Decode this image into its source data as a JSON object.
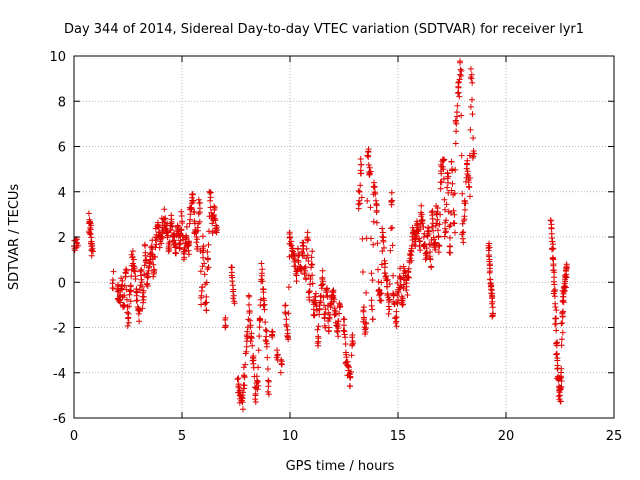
{
  "chart_data": {
    "type": "scatter",
    "title": "Day 344 of 2014, Sidereal Day-to-day VTEC variation (SDTVAR) for receiver lyr1",
    "xlabel": "GPS time / hours",
    "ylabel": "SDTVAR / TECUs",
    "xlim": [
      0,
      25
    ],
    "ylim": [
      -6,
      10
    ],
    "xticks": [
      0,
      5,
      10,
      15,
      20,
      25
    ],
    "yticks": [
      -6,
      -4,
      -2,
      0,
      2,
      4,
      6,
      8,
      10
    ],
    "grid": true,
    "marker": "+",
    "color": "#e00000",
    "series": [
      {
        "name": "SDTVAR",
        "segments": [
          {
            "t": 0.0,
            "v": 1.6
          },
          {
            "t": 0.15,
            "v": 1.7
          },
          {
            "t": 0.7,
            "v": 2.6
          },
          {
            "t": 0.75,
            "v": 2.4
          },
          {
            "t": 0.8,
            "v": 1.8
          },
          {
            "t": 0.85,
            "v": 1.5
          },
          {
            "t": 1.8,
            "v": 0.1
          },
          {
            "t": 2.0,
            "v": -0.3
          },
          {
            "t": 2.1,
            "v": -0.8
          },
          {
            "t": 2.2,
            "v": -0.2
          },
          {
            "t": 2.3,
            "v": -1.0
          },
          {
            "t": 2.4,
            "v": 0.4
          },
          {
            "t": 2.5,
            "v": -1.6
          },
          {
            "t": 2.6,
            "v": -0.4
          },
          {
            "t": 2.7,
            "v": 1.1
          },
          {
            "t": 2.8,
            "v": 0.6
          },
          {
            "t": 2.9,
            "v": -0.6
          },
          {
            "t": 3.0,
            "v": -1.4
          },
          {
            "t": 3.1,
            "v": 0.3
          },
          {
            "t": 3.2,
            "v": -0.9
          },
          {
            "t": 3.3,
            "v": 1.3
          },
          {
            "t": 3.4,
            "v": 0.2
          },
          {
            "t": 3.5,
            "v": 0.9
          },
          {
            "t": 3.6,
            "v": 1.6
          },
          {
            "t": 3.7,
            "v": 0.5
          },
          {
            "t": 3.8,
            "v": 2.0
          },
          {
            "t": 3.9,
            "v": 2.5
          },
          {
            "t": 4.0,
            "v": 1.9
          },
          {
            "t": 4.1,
            "v": 2.4
          },
          {
            "t": 4.2,
            "v": 2.8
          },
          {
            "t": 4.3,
            "v": 2.2
          },
          {
            "t": 4.4,
            "v": 1.6
          },
          {
            "t": 4.5,
            "v": 2.6
          },
          {
            "t": 4.6,
            "v": 2.0
          },
          {
            "t": 4.7,
            "v": 1.3
          },
          {
            "t": 4.8,
            "v": 2.4
          },
          {
            "t": 4.9,
            "v": 1.7
          },
          {
            "t": 5.0,
            "v": 2.7
          },
          {
            "t": 5.1,
            "v": 1.1
          },
          {
            "t": 5.2,
            "v": 2.0
          },
          {
            "t": 5.3,
            "v": 1.4
          },
          {
            "t": 5.4,
            "v": 3.3
          },
          {
            "t": 5.5,
            "v": 3.9
          },
          {
            "t": 5.6,
            "v": 2.6
          },
          {
            "t": 5.7,
            "v": 1.9
          },
          {
            "t": 5.8,
            "v": 3.5
          },
          {
            "t": 5.9,
            "v": -0.6
          },
          {
            "t": 6.0,
            "v": 1.6
          },
          {
            "t": 6.1,
            "v": -0.9
          },
          {
            "t": 6.2,
            "v": 1.0
          },
          {
            "t": 6.3,
            "v": 3.6
          },
          {
            "t": 6.4,
            "v": 2.6
          },
          {
            "t": 6.5,
            "v": 3.2
          },
          {
            "t": 6.6,
            "v": 2.2
          },
          {
            "t": 7.0,
            "v": -2.0
          },
          {
            "t": 7.3,
            "v": 0.3
          },
          {
            "t": 7.4,
            "v": -0.6
          },
          {
            "t": 7.6,
            "v": -4.6
          },
          {
            "t": 7.7,
            "v": -5.0
          },
          {
            "t": 7.8,
            "v": -5.3
          },
          {
            "t": 7.9,
            "v": -4.2
          },
          {
            "t": 8.0,
            "v": -2.6
          },
          {
            "t": 8.1,
            "v": -1.0
          },
          {
            "t": 8.2,
            "v": -2.4
          },
          {
            "t": 8.3,
            "v": -3.6
          },
          {
            "t": 8.4,
            "v": -5.0
          },
          {
            "t": 8.5,
            "v": -4.4
          },
          {
            "t": 8.6,
            "v": -1.6
          },
          {
            "t": 8.7,
            "v": 0.4
          },
          {
            "t": 8.8,
            "v": -0.8
          },
          {
            "t": 8.9,
            "v": -2.4
          },
          {
            "t": 9.0,
            "v": -4.6
          },
          {
            "t": 9.2,
            "v": -2.2
          },
          {
            "t": 9.4,
            "v": -3.0
          },
          {
            "t": 9.6,
            "v": -3.6
          },
          {
            "t": 9.8,
            "v": -1.4
          },
          {
            "t": 9.9,
            "v": -2.4
          },
          {
            "t": 10.0,
            "v": 2.0
          },
          {
            "t": 10.1,
            "v": 1.5
          },
          {
            "t": 10.2,
            "v": 0.9
          },
          {
            "t": 10.3,
            "v": 0.3
          },
          {
            "t": 10.4,
            "v": 1.2
          },
          {
            "t": 10.5,
            "v": 0.6
          },
          {
            "t": 10.6,
            "v": 1.6
          },
          {
            "t": 10.7,
            "v": 0.5
          },
          {
            "t": 10.8,
            "v": 1.9
          },
          {
            "t": 10.9,
            "v": -0.4
          },
          {
            "t": 11.0,
            "v": 1.1
          },
          {
            "t": 11.1,
            "v": -1.2
          },
          {
            "t": 11.2,
            "v": -0.5
          },
          {
            "t": 11.3,
            "v": -2.4
          },
          {
            "t": 11.4,
            "v": -0.9
          },
          {
            "t": 11.5,
            "v": 0.2
          },
          {
            "t": 11.6,
            "v": -1.6
          },
          {
            "t": 11.7,
            "v": -0.3
          },
          {
            "t": 11.8,
            "v": -2.0
          },
          {
            "t": 11.9,
            "v": -1.0
          },
          {
            "t": 12.0,
            "v": -0.6
          },
          {
            "t": 12.1,
            "v": -1.4
          },
          {
            "t": 12.2,
            "v": -2.2
          },
          {
            "t": 12.3,
            "v": -1.1
          },
          {
            "t": 12.5,
            "v": -1.9
          },
          {
            "t": 12.6,
            "v": -3.2
          },
          {
            "t": 12.7,
            "v": -3.9
          },
          {
            "t": 12.8,
            "v": -4.2
          },
          {
            "t": 12.9,
            "v": -2.6
          },
          {
            "t": 13.2,
            "v": 3.6
          },
          {
            "t": 13.3,
            "v": 5.2
          },
          {
            "t": 13.4,
            "v": -1.3
          },
          {
            "t": 13.5,
            "v": -2.2
          },
          {
            "t": 13.6,
            "v": 5.6
          },
          {
            "t": 13.7,
            "v": 4.8
          },
          {
            "t": 13.8,
            "v": -1.2
          },
          {
            "t": 13.9,
            "v": 4.2
          },
          {
            "t": 14.0,
            "v": 3.4
          },
          {
            "t": 14.1,
            "v": -0.4
          },
          {
            "t": 14.2,
            "v": -0.8
          },
          {
            "t": 14.3,
            "v": 2.2
          },
          {
            "t": 14.4,
            "v": 0.4
          },
          {
            "t": 14.5,
            "v": -0.2
          },
          {
            "t": 14.6,
            "v": -1.2
          },
          {
            "t": 14.7,
            "v": 3.6
          },
          {
            "t": 14.8,
            "v": -0.6
          },
          {
            "t": 14.9,
            "v": -1.8
          },
          {
            "t": 15.0,
            "v": -0.4
          },
          {
            "t": 15.1,
            "v": 0.2
          },
          {
            "t": 15.2,
            "v": -1.0
          },
          {
            "t": 15.3,
            "v": 0.5
          },
          {
            "t": 15.4,
            "v": -0.2
          },
          {
            "t": 15.5,
            "v": 0.6
          },
          {
            "t": 15.6,
            "v": 1.4
          },
          {
            "t": 15.7,
            "v": 2.2
          },
          {
            "t": 15.8,
            "v": 1.6
          },
          {
            "t": 15.9,
            "v": 2.6
          },
          {
            "t": 16.0,
            "v": 1.8
          },
          {
            "t": 16.1,
            "v": 3.0
          },
          {
            "t": 16.2,
            "v": 2.0
          },
          {
            "t": 16.3,
            "v": 1.2
          },
          {
            "t": 16.4,
            "v": 2.4
          },
          {
            "t": 16.5,
            "v": 1.0
          },
          {
            "t": 16.6,
            "v": 2.8
          },
          {
            "t": 16.7,
            "v": 1.6
          },
          {
            "t": 16.8,
            "v": 3.0
          },
          {
            "t": 16.9,
            "v": 1.6
          },
          {
            "t": 17.0,
            "v": 4.8
          },
          {
            "t": 17.1,
            "v": 5.4
          },
          {
            "t": 17.2,
            "v": 2.2
          },
          {
            "t": 17.3,
            "v": 4.6
          },
          {
            "t": 17.4,
            "v": 1.6
          },
          {
            "t": 17.5,
            "v": 5.0
          },
          {
            "t": 17.6,
            "v": 2.6
          },
          {
            "t": 17.7,
            "v": 7.0
          },
          {
            "t": 17.8,
            "v": 8.6
          },
          {
            "t": 17.9,
            "v": 9.4
          },
          {
            "t": 18.0,
            "v": 2.2
          },
          {
            "t": 18.1,
            "v": 3.2
          },
          {
            "t": 18.2,
            "v": 5.2
          },
          {
            "t": 18.3,
            "v": 4.2
          },
          {
            "t": 18.4,
            "v": 9.0
          },
          {
            "t": 18.5,
            "v": 5.8
          },
          {
            "t": 19.2,
            "v": 1.4
          },
          {
            "t": 19.25,
            "v": 0.8
          },
          {
            "t": 19.3,
            "v": -0.2
          },
          {
            "t": 19.35,
            "v": -0.6
          },
          {
            "t": 19.4,
            "v": -1.4
          },
          {
            "t": 22.1,
            "v": 2.4
          },
          {
            "t": 22.15,
            "v": 1.8
          },
          {
            "t": 22.2,
            "v": 0.8
          },
          {
            "t": 22.25,
            "v": -0.4
          },
          {
            "t": 22.3,
            "v": -1.6
          },
          {
            "t": 22.35,
            "v": -2.8
          },
          {
            "t": 22.4,
            "v": -3.8
          },
          {
            "t": 22.45,
            "v": -4.6
          },
          {
            "t": 22.5,
            "v": -5.0
          },
          {
            "t": 22.55,
            "v": -4.2
          },
          {
            "t": 22.6,
            "v": -1.8
          },
          {
            "t": 22.65,
            "v": -0.8
          },
          {
            "t": 22.7,
            "v": -0.2
          },
          {
            "t": 22.75,
            "v": 0.2
          },
          {
            "t": 22.8,
            "v": 0.6
          }
        ]
      }
    ]
  }
}
